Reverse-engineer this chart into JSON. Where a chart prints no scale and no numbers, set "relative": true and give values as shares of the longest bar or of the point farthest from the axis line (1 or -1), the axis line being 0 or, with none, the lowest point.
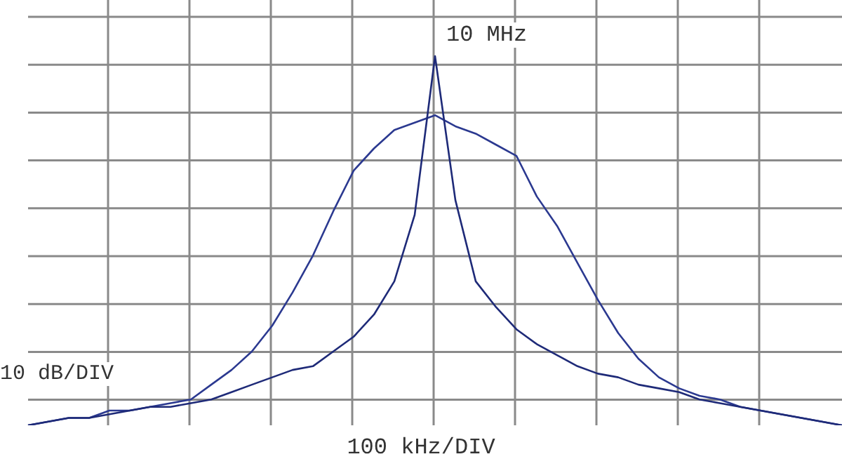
{
  "chart_data": {
    "type": "line",
    "relative": true,
    "grid": true,
    "xlabel": "100 kHz/DIV",
    "ylabel": "10 dB/DIV",
    "annotations": [
      "10 MHz"
    ],
    "marker": "none",
    "categories": [
      null,
      null,
      null,
      null,
      null,
      null,
      null,
      null,
      null,
      null,
      null,
      null,
      null,
      null,
      null,
      null,
      null,
      null,
      null,
      null,
      null,
      null,
      null,
      null,
      null,
      null,
      null,
      null,
      null,
      null,
      null,
      null,
      null,
      null,
      null,
      null,
      null,
      null,
      null,
      null,
      null
    ],
    "series": [
      {
        "color": "#2b3990",
        "values": [
          0,
          0.01,
          0.02,
          0.02,
          0.04,
          0.04,
          0.05,
          0.06,
          0.07,
          0.11,
          0.15,
          0.2,
          0.27,
          0.36,
          0.46,
          0.58,
          0.69,
          0.75,
          0.8,
          0.82,
          0.84,
          0.81,
          0.79,
          0.76,
          0.73,
          0.62,
          0.54,
          0.44,
          0.34,
          0.25,
          0.18,
          0.13,
          0.1,
          0.08,
          0.07,
          0.05,
          0.04,
          0.03,
          0.02,
          0.01,
          0
        ]
      },
      {
        "color": "#1e2a78",
        "values": [
          0,
          0.01,
          0.02,
          0.02,
          0.03,
          0.04,
          0.05,
          0.05,
          0.06,
          0.07,
          0.09,
          0.11,
          0.13,
          0.15,
          0.16,
          0.2,
          0.24,
          0.3,
          0.39,
          0.57,
          1,
          0.61,
          0.39,
          0.32,
          0.26,
          0.22,
          0.19,
          0.16,
          0.14,
          0.13,
          0.11,
          0.1,
          0.09,
          0.07,
          0.06,
          0.05,
          0.04,
          0.03,
          0.02,
          0.01,
          0
        ]
      }
    ]
  }
}
